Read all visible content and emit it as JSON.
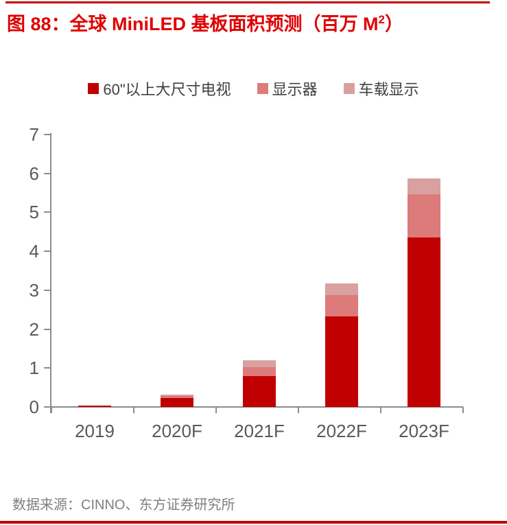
{
  "title": {
    "prefix": "图 88：全球 MiniLED 基板面积预测（百万 M",
    "sup": "2",
    "suffix": "）"
  },
  "source": "数据来源：CINNO、东方证券研究所",
  "colors": {
    "rule_red": "#c00000",
    "title_red": "#e00000",
    "axis_gray": "#8c8c8c",
    "tick_label_gray": "#595959",
    "legend_text": "#404040",
    "source_gray": "#7f7f7f",
    "series_tv": "#c00000",
    "series_monitor": "#dd7a7a",
    "series_automotive": "#d9a0a0"
  },
  "chart_data": {
    "type": "bar",
    "stacked": true,
    "title": "全球 MiniLED 基板面积预测（百万 M2）",
    "categories": [
      "2019",
      "2020F",
      "2021F",
      "2022F",
      "2023F"
    ],
    "series": [
      {
        "name": "60\"以上大尺寸电视",
        "color": "#c00000",
        "values": [
          0.04,
          0.23,
          0.8,
          2.32,
          4.36
        ]
      },
      {
        "name": "显示器",
        "color": "#dd7a7a",
        "values": [
          0.0,
          0.06,
          0.23,
          0.55,
          1.1
        ]
      },
      {
        "name": "车载显示",
        "color": "#d9a0a0",
        "values": [
          0.0,
          0.02,
          0.17,
          0.3,
          0.42
        ]
      }
    ],
    "totals": [
      0.04,
      0.31,
      1.2,
      3.17,
      5.88
    ],
    "xlabel": "",
    "ylabel": "",
    "ylim": [
      0,
      7
    ],
    "yticks": [
      0,
      1,
      2,
      3,
      4,
      5,
      6,
      7
    ],
    "grid": false,
    "legend_position": "top-center"
  }
}
